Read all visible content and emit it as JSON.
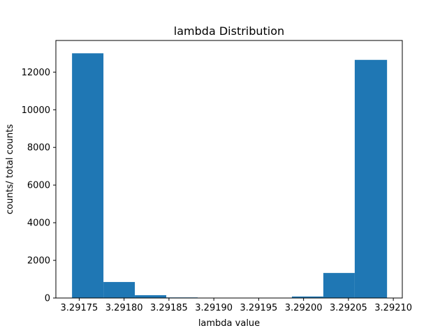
{
  "chart_data": {
    "type": "bar",
    "title": "lambda Distribution",
    "xlabel": "lambda value",
    "ylabel": "counts/ total counts",
    "bar_color": "#1f77b4",
    "bin_edges": [
      3.291742,
      3.291777,
      3.291812,
      3.291847,
      3.291882,
      3.291917,
      3.291952,
      3.291987,
      3.292022,
      3.292057,
      3.292093
    ],
    "values": [
      13000,
      850,
      150,
      30,
      0,
      0,
      0,
      80,
      1330,
      12650
    ],
    "xlim": [
      3.291724,
      3.29211
    ],
    "ylim": [
      0,
      13680
    ],
    "xticks": [
      3.29175,
      3.2918,
      3.29185,
      3.2919,
      3.29195,
      3.292,
      3.29205,
      3.2921
    ],
    "xtick_labels": [
      "3.29175",
      "3.29180",
      "3.29185",
      "3.29190",
      "3.29195",
      "3.29200",
      "3.29205",
      "3.29210"
    ],
    "yticks": [
      0,
      2000,
      4000,
      6000,
      8000,
      10000,
      12000
    ],
    "ytick_labels": [
      "0",
      "2000",
      "4000",
      "6000",
      "8000",
      "10000",
      "12000"
    ],
    "grid": false,
    "legend": "none"
  }
}
